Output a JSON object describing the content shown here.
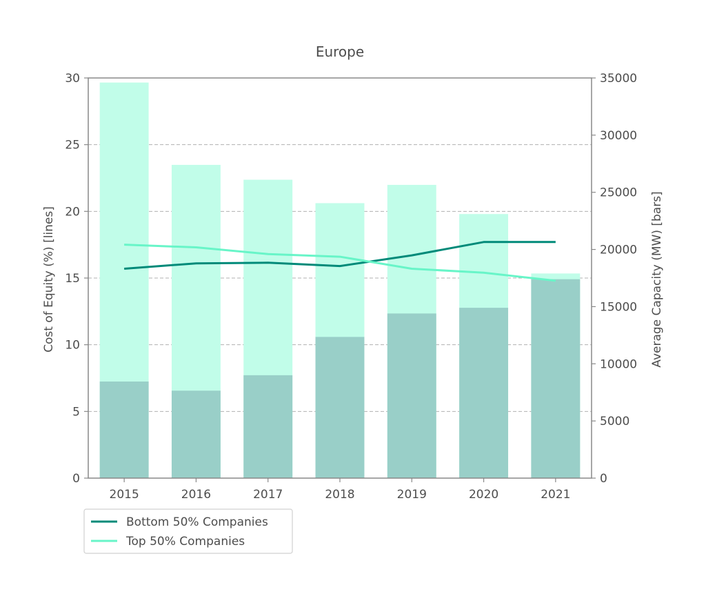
{
  "chart_data": {
    "type": "bar",
    "title": "Europe",
    "categories": [
      "2015",
      "2016",
      "2017",
      "2018",
      "2019",
      "2020",
      "2021"
    ],
    "ylabel": "Cost of Equity (%) [lines]",
    "ylabel_right": "Average Capacity (MW) [bars]",
    "ylim": [
      0,
      30
    ],
    "ylim_right": [
      0,
      35000
    ],
    "yticks": [
      0,
      5,
      10,
      15,
      20,
      25,
      30
    ],
    "yticks_right": [
      0,
      5000,
      10000,
      15000,
      20000,
      25000,
      30000,
      35000
    ],
    "grid": "horizontal dashed",
    "legend_position": "bottom-left",
    "bars": [
      {
        "name": "Top 50% Companies",
        "values": [
          34600,
          27400,
          26100,
          24050,
          25650,
          23100,
          17900
        ],
        "color": "#c1fde9"
      },
      {
        "name": "Bottom 50% Companies",
        "values": [
          8450,
          7650,
          9000,
          12350,
          14400,
          14900,
          17400
        ],
        "color": "#99cfc8"
      }
    ],
    "series": [
      {
        "name": "Bottom 50% Companies",
        "values": [
          15.7,
          16.1,
          16.15,
          15.9,
          16.7,
          17.7,
          17.7
        ],
        "color": "#008a79"
      },
      {
        "name": "Top 50% Companies",
        "values": [
          17.5,
          17.3,
          16.8,
          16.6,
          15.7,
          15.4,
          14.8
        ],
        "color": "#68f5c8"
      }
    ]
  }
}
